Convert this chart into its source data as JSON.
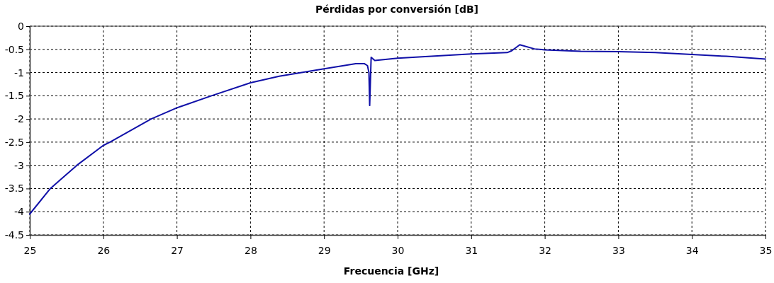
{
  "chart_data": {
    "type": "line",
    "title": "Pérdidas por conversión [dB]",
    "xlabel": "Frecuencia [GHz]",
    "xlim": [
      25,
      35
    ],
    "xticks": [
      25,
      26,
      27,
      28,
      29,
      30,
      31,
      32,
      33,
      34,
      35
    ],
    "ylim": [
      -4.5,
      0
    ],
    "yticks": [
      -4.5,
      -4,
      -3.5,
      -3,
      -2.5,
      -2,
      -1.5,
      -1,
      -0.5,
      0
    ],
    "grid": true,
    "series": [
      {
        "color": "#1010a8",
        "x": [
          25,
          25.28,
          25.64,
          26,
          26.09,
          26.65,
          27,
          27.47,
          28,
          28.39,
          29,
          29.43,
          29.55,
          29.59,
          29.61,
          29.62,
          29.64,
          29.69,
          30,
          31,
          31.49,
          31.55,
          31.66,
          31.86,
          32,
          32.49,
          33,
          33.5,
          34,
          34.47,
          35
        ],
        "values": [
          -4.05,
          -3.5,
          -3,
          -2.57,
          -2.5,
          -2,
          -1.76,
          -1.5,
          -1.22,
          -1.08,
          -0.92,
          -0.81,
          -0.81,
          -0.85,
          -1.0,
          -1.71,
          -0.67,
          -0.74,
          -0.69,
          -0.6,
          -0.57,
          -0.53,
          -0.4,
          -0.49,
          -0.51,
          -0.54,
          -0.55,
          -0.57,
          -0.61,
          -0.65,
          -0.71
        ]
      }
    ]
  }
}
